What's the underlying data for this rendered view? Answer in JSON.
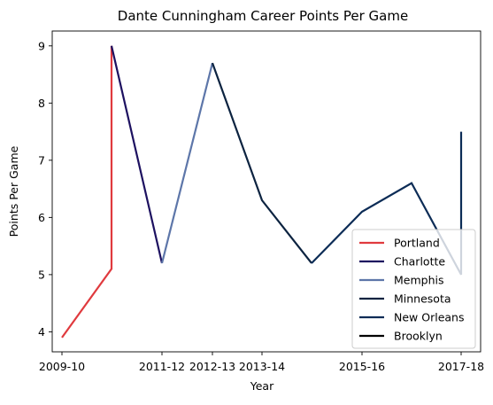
{
  "chart_data": {
    "type": "line",
    "title": "Dante Cunningham Career Points Per Game",
    "xlabel": "Year",
    "ylabel": "Points Per Game",
    "x_tick_labels": [
      "2009-10",
      "2011-12",
      "2012-13",
      "2013-14",
      "2015-16",
      "2017-18"
    ],
    "ylim": [
      3.65,
      9.26
    ],
    "y_ticks": [
      4,
      5,
      6,
      7,
      8,
      9
    ],
    "grid": false,
    "legend_position": "lower-right",
    "series": [
      {
        "name": "Portland",
        "color": "#e03a3e",
        "points": [
          {
            "x": "2009-10",
            "y": 3.9
          },
          {
            "x": "2010-11",
            "y": 5.1
          },
          {
            "x": "2010-11",
            "y": 9.0
          }
        ]
      },
      {
        "name": "Charlotte",
        "color": "#1d1160",
        "points": [
          {
            "x": "2010-11",
            "y": 9.0
          },
          {
            "x": "2011-12",
            "y": 5.2
          }
        ]
      },
      {
        "name": "Memphis",
        "color": "#5d76a9",
        "points": [
          {
            "x": "2011-12",
            "y": 5.2
          },
          {
            "x": "2012-13",
            "y": 8.7
          }
        ]
      },
      {
        "name": "Minnesota",
        "color": "#0c2340",
        "points": [
          {
            "x": "2012-13",
            "y": 8.7
          },
          {
            "x": "2013-14",
            "y": 6.3
          },
          {
            "x": "2014-15",
            "y": 5.2
          }
        ]
      },
      {
        "name": "New Orleans",
        "color": "#0c2c56",
        "points": [
          {
            "x": "2014-15",
            "y": 5.2
          },
          {
            "x": "2015-16",
            "y": 6.1
          },
          {
            "x": "2016-17",
            "y": 6.6
          },
          {
            "x": "2017-18",
            "y": 5.0
          },
          {
            "x": "2017-18",
            "y": 7.5
          }
        ]
      },
      {
        "name": "Brooklyn",
        "color": "#000000",
        "points": []
      }
    ]
  }
}
